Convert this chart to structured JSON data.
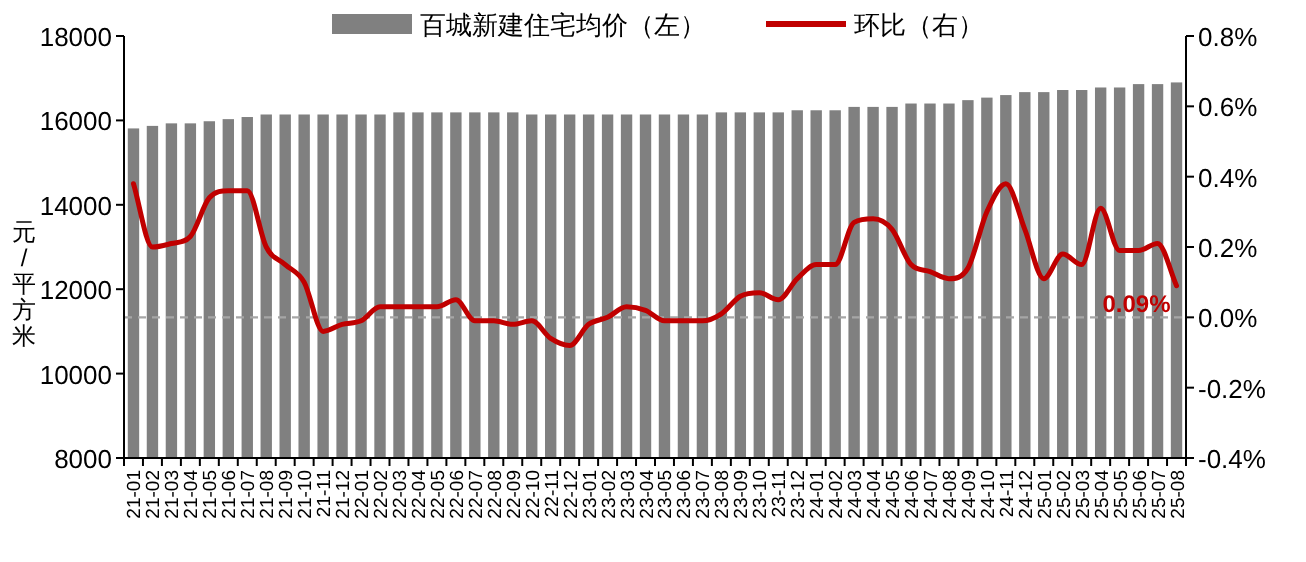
{
  "chart_data": {
    "type": "bar",
    "categories": [
      "21-01",
      "21-02",
      "21-03",
      "21-04",
      "21-05",
      "21-06",
      "21-07",
      "21-08",
      "21-09",
      "21-10",
      "21-11",
      "21-12",
      "22-01",
      "22-02",
      "22-03",
      "22-04",
      "22-05",
      "22-06",
      "22-07",
      "22-08",
      "22-09",
      "22-10",
      "22-11",
      "22-12",
      "23-01",
      "23-02",
      "23-03",
      "23-04",
      "23-05",
      "23-06",
      "23-07",
      "23-08",
      "23-09",
      "23-10",
      "23-11",
      "23-12",
      "24-01",
      "24-02",
      "24-03",
      "24-04",
      "24-05",
      "24-06",
      "24-07",
      "24-08",
      "24-09",
      "24-10",
      "24-11",
      "24-12",
      "25-01",
      "25-02",
      "25-03",
      "25-04",
      "25-05",
      "25-06",
      "25-07",
      "25-08"
    ],
    "ylabel": "元/平方米",
    "ylim": [
      8000,
      18000
    ],
    "yticks": [
      8000,
      10000,
      12000,
      14000,
      16000,
      18000
    ],
    "y2lim": [
      -0.4,
      0.8
    ],
    "y2ticks": [
      {
        "value": -0.4,
        "label": "-0.4%"
      },
      {
        "value": -0.2,
        "label": "-0.2%"
      },
      {
        "value": 0,
        "label": "0.0%"
      },
      {
        "value": 0.2,
        "label": "0.2%"
      },
      {
        "value": 0.4,
        "label": "0.4%"
      },
      {
        "value": 0.6,
        "label": "0.6%"
      },
      {
        "value": 0.8,
        "label": "0.8%"
      }
    ],
    "legend": "top",
    "grid": false,
    "marker": "none",
    "line_style": "solid",
    "ref_lines": [
      {
        "axis": "y2",
        "value": 0,
        "color": "#a6a6a6",
        "line_style": "dashed"
      }
    ],
    "series": [
      {
        "name": "百城新建住宅均价（左）",
        "color": "#808080",
        "values": [
          15810,
          15870,
          15930,
          15930,
          15980,
          16030,
          16080,
          16140,
          16140,
          16140,
          16140,
          16140,
          16140,
          16140,
          16190,
          16190,
          16190,
          16190,
          16190,
          16190,
          16190,
          16140,
          16140,
          16140,
          16140,
          16140,
          16140,
          16140,
          16140,
          16140,
          16140,
          16190,
          16190,
          16190,
          16190,
          16240,
          16240,
          16240,
          16320,
          16320,
          16320,
          16400,
          16400,
          16400,
          16480,
          16540,
          16600,
          16670,
          16670,
          16720,
          16720,
          16780,
          16780,
          16860,
          16860,
          16900
        ]
      },
      {
        "name": "环比（右）",
        "type": "line",
        "axis": "y2",
        "color": "#c00000",
        "values": [
          0.38,
          0.2,
          0.21,
          0.23,
          0.34,
          0.36,
          0.36,
          0.2,
          0.15,
          0.1,
          -0.04,
          -0.02,
          -0.01,
          0.03,
          0.03,
          0.03,
          0.03,
          0.05,
          -0.01,
          -0.01,
          -0.02,
          -0.01,
          -0.06,
          -0.08,
          -0.02,
          0.0,
          0.03,
          0.02,
          -0.01,
          -0.01,
          -0.01,
          0.01,
          0.06,
          0.07,
          0.05,
          0.11,
          0.15,
          0.15,
          0.27,
          0.28,
          0.25,
          0.15,
          0.13,
          0.11,
          0.14,
          0.3,
          0.38,
          0.25,
          0.11,
          0.18,
          0.15,
          0.31,
          0.19,
          0.19,
          0.21,
          0.09
        ],
        "value_labels": [
          null,
          null,
          null,
          null,
          null,
          null,
          null,
          null,
          null,
          null,
          null,
          null,
          null,
          null,
          null,
          null,
          null,
          null,
          null,
          null,
          null,
          null,
          null,
          null,
          null,
          null,
          null,
          null,
          null,
          null,
          null,
          null,
          null,
          null,
          null,
          null,
          null,
          null,
          null,
          null,
          null,
          null,
          null,
          null,
          null,
          null,
          null,
          null,
          null,
          null,
          null,
          null,
          null,
          null,
          null,
          "0.09%"
        ]
      }
    ]
  }
}
